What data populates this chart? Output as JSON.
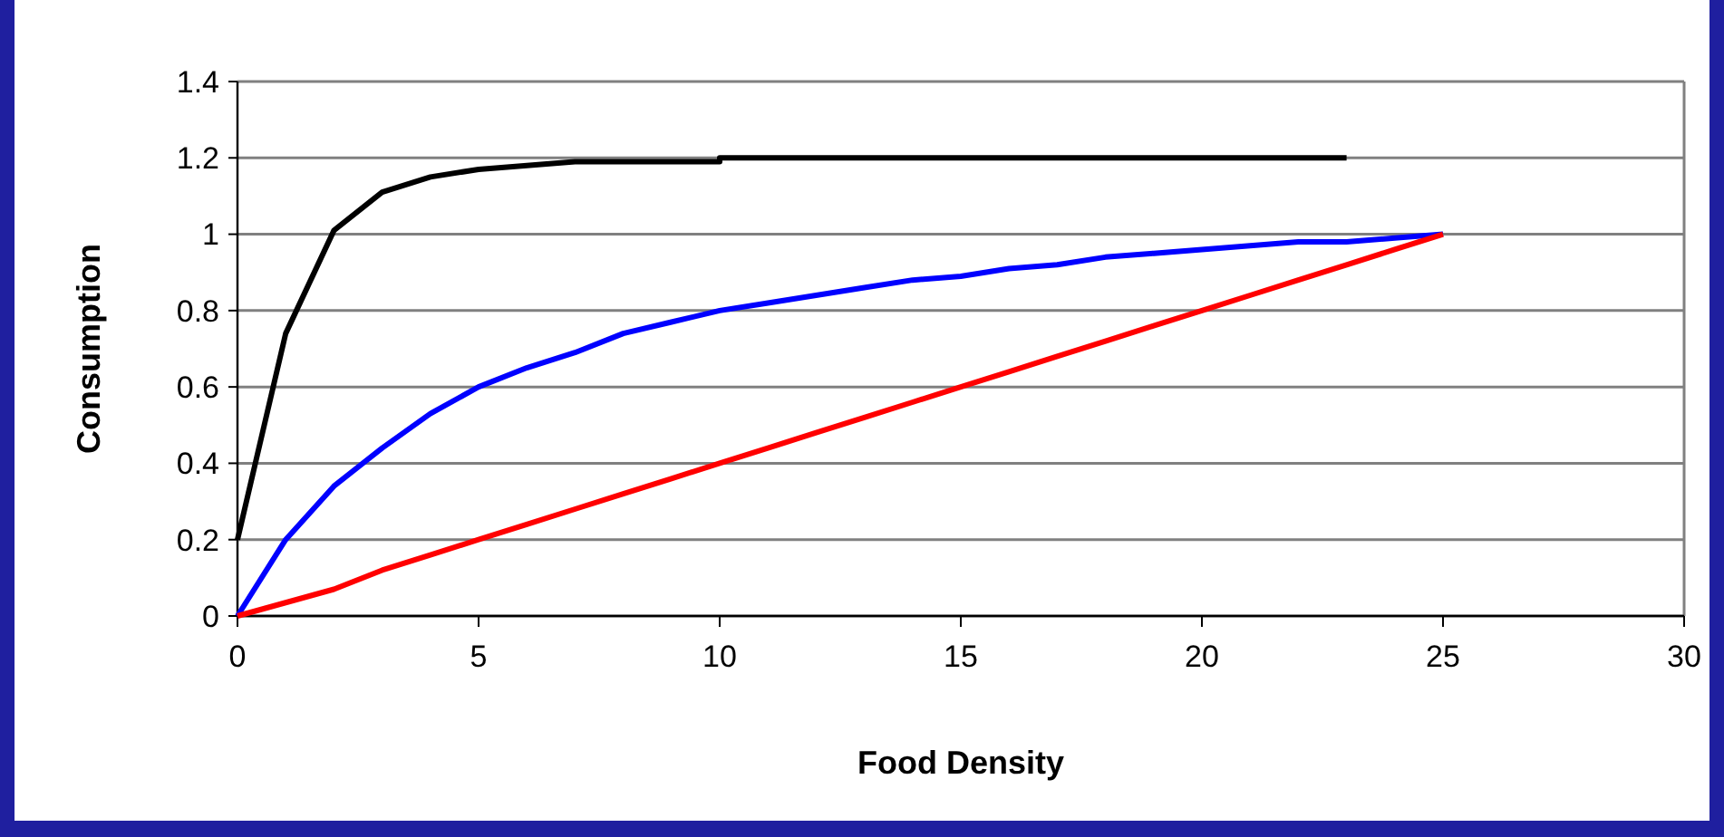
{
  "chart_data": {
    "type": "line",
    "xlabel": "Food Density",
    "ylabel": "Consumption",
    "xlim": [
      0,
      30
    ],
    "xticks": [
      0,
      5,
      10,
      15,
      20,
      25,
      30
    ],
    "ylim": [
      0,
      1.4
    ],
    "yticks": [
      0,
      0.2,
      0.4,
      0.6,
      0.8,
      1,
      1.2,
      1.4
    ],
    "grid": "y",
    "series": [
      {
        "color": "#000000",
        "x": [
          0,
          1,
          2,
          3,
          4,
          5,
          6,
          7,
          8,
          9,
          10,
          10,
          23
        ],
        "values": [
          0.2,
          0.74,
          1.01,
          1.11,
          1.15,
          1.17,
          1.18,
          1.19,
          1.19,
          1.19,
          1.19,
          1.2,
          1.2
        ]
      },
      {
        "color": "#0000ff",
        "x": [
          0,
          1,
          2,
          3,
          4,
          5,
          6,
          7,
          8,
          9,
          10,
          11,
          12,
          13,
          14,
          15,
          16,
          17,
          18,
          19,
          20,
          21,
          22,
          23,
          24,
          25
        ],
        "values": [
          0,
          0.2,
          0.34,
          0.44,
          0.53,
          0.6,
          0.65,
          0.69,
          0.74,
          0.77,
          0.8,
          0.82,
          0.84,
          0.86,
          0.88,
          0.89,
          0.91,
          0.92,
          0.94,
          0.95,
          0.96,
          0.97,
          0.98,
          0.98,
          0.99,
          1
        ]
      },
      {
        "color": "#ff0000",
        "x": [
          0,
          1,
          2,
          3,
          4,
          5,
          6,
          7,
          8,
          9,
          10,
          11,
          12,
          13,
          14,
          15,
          16,
          17,
          18,
          19,
          20,
          21,
          22,
          23,
          24,
          25
        ],
        "values": [
          0,
          0.035,
          0.07,
          0.12,
          0.16,
          0.2,
          0.24,
          0.28,
          0.32,
          0.36,
          0.4,
          0.44,
          0.48,
          0.52,
          0.56,
          0.6,
          0.64,
          0.68,
          0.72,
          0.76,
          0.8,
          0.84,
          0.88,
          0.92,
          0.96,
          1
        ]
      }
    ]
  }
}
